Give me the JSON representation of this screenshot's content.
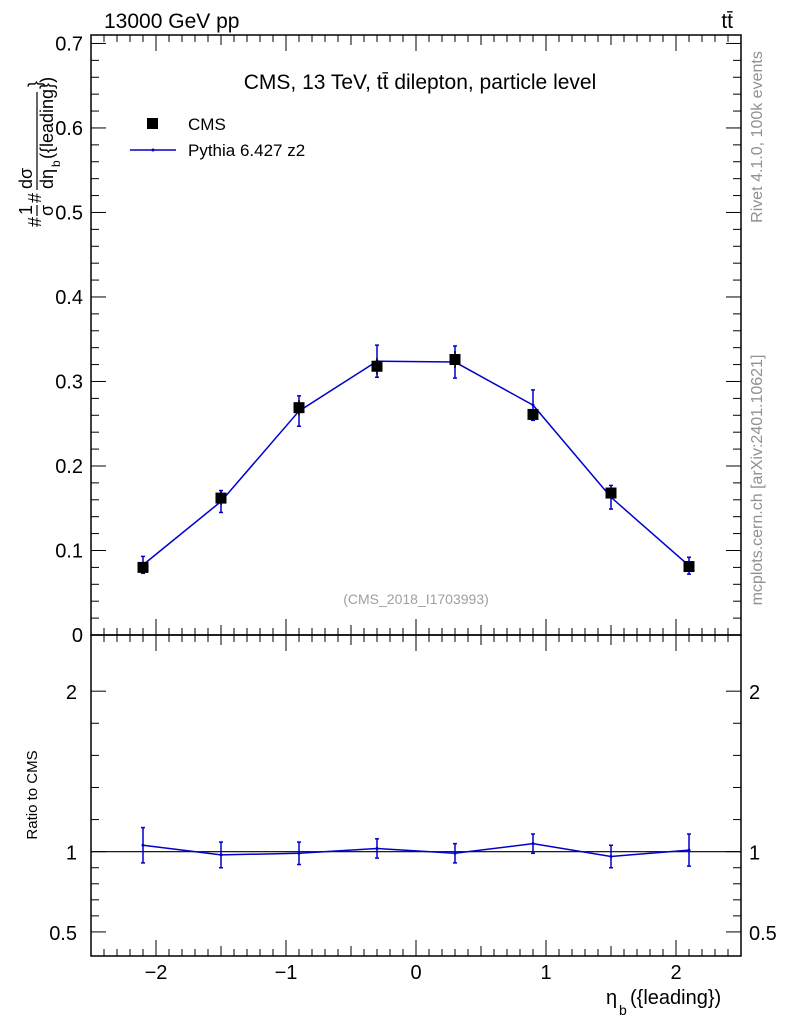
{
  "header": {
    "left_label": "13000 GeV pp",
    "right_label": "tt̄"
  },
  "side_labels": {
    "rivet": "Rivet 4.1.0,  100k events",
    "source": "mcplots.cern.ch [arXiv:2401.10621]"
  },
  "colors": {
    "data_marker": "#000000",
    "mc_line": "#0000cc",
    "axis": "#000000",
    "watermark": "#a0a0a0"
  },
  "chart_data": [
    {
      "id": "main",
      "type": "line",
      "title": "CMS, 13 TeV, tt̄ dilepton, particle level",
      "watermark": "(CMS_2018_I1703993)",
      "ylabel_parts": [
        "#",
        "1",
        "σ",
        "#",
        "dσ",
        "dη",
        "b",
        "({leading})",
        "}"
      ],
      "xlim": [
        -2.5,
        2.5
      ],
      "ylim": [
        0,
        0.71
      ],
      "yticks": [
        0,
        0.1,
        0.2,
        0.3,
        0.4,
        0.5,
        0.6,
        0.7
      ],
      "ytick_labels": [
        "0",
        "0.1",
        "0.2",
        "0.3",
        "0.4",
        "0.5",
        "0.6",
        "0.7"
      ],
      "legend": [
        {
          "label": "CMS",
          "kind": "marker"
        },
        {
          "label": "Pythia 6.427 z2",
          "kind": "line"
        }
      ],
      "series": [
        {
          "name": "CMS",
          "x": [
            -2.1,
            -1.5,
            -0.9,
            -0.3,
            0.3,
            0.9,
            1.5,
            2.1
          ],
          "y": [
            0.08,
            0.162,
            0.269,
            0.318,
            0.326,
            0.261,
            0.168,
            0.081
          ],
          "err": [
            0.005,
            0.008,
            0.009,
            0.01,
            0.01,
            0.006,
            0.006,
            0.004
          ]
        },
        {
          "name": "Pythia 6.427 z2",
          "x": [
            -2.1,
            -1.5,
            -0.9,
            -0.3,
            0.3,
            0.9,
            1.5,
            2.1
          ],
          "y": [
            0.083,
            0.158,
            0.265,
            0.324,
            0.323,
            0.272,
            0.163,
            0.082
          ],
          "err": [
            0.01,
            0.013,
            0.018,
            0.019,
            0.019,
            0.018,
            0.014,
            0.01
          ]
        }
      ]
    },
    {
      "id": "ratio",
      "type": "line",
      "ylabel": "Ratio to CMS",
      "xlabel_parts": [
        "η",
        "b",
        "({leading})"
      ],
      "xlim": [
        -2.5,
        2.5
      ],
      "ylim": [
        0.35,
        2.35
      ],
      "yticks": [
        0.5,
        1,
        2
      ],
      "ytick_labels": [
        "0.5",
        "1",
        "2"
      ],
      "xticks": [
        -2,
        -1,
        0,
        1,
        2
      ],
      "xtick_labels": [
        "−2",
        "−1",
        "0",
        "1",
        "2"
      ],
      "reference": 1,
      "series": [
        {
          "name": "Pythia 6.427 z2",
          "x": [
            -2.1,
            -1.5,
            -0.9,
            -0.3,
            0.3,
            0.9,
            1.5,
            2.1
          ],
          "y": [
            1.04,
            0.98,
            0.99,
            1.02,
            0.99,
            1.05,
            0.97,
            1.01
          ],
          "err": [
            0.11,
            0.08,
            0.07,
            0.06,
            0.06,
            0.06,
            0.07,
            0.1
          ]
        }
      ]
    }
  ]
}
